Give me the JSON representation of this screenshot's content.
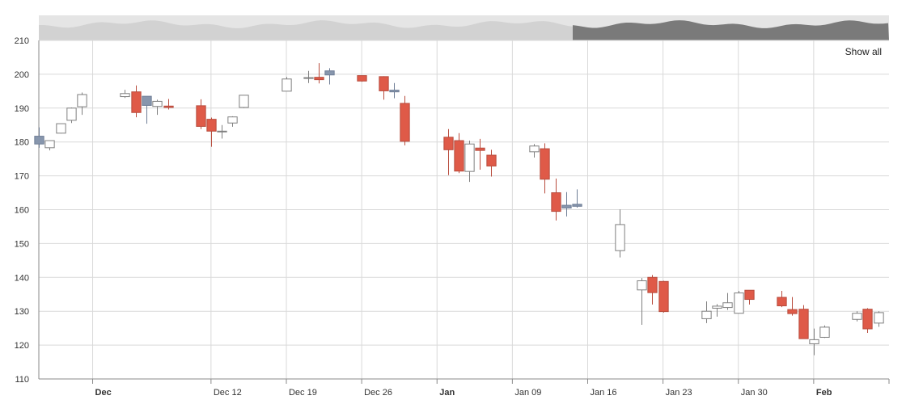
{
  "controls": {
    "show_all": "Show all"
  },
  "colors": {
    "up": "#7f7f7f",
    "down": "#df5a48",
    "down_border": "#b84c3d",
    "highlight_body": "#8796ad",
    "grid": "#d9d9d9",
    "axis": "#8a8a8a",
    "navigator_bg": "#e5e5e5",
    "navigator_left": "#d2d2d2",
    "navigator_right": "#7a7a7a"
  },
  "chart_data": {
    "type": "candlestick",
    "title": "",
    "xlabel": "",
    "ylabel": "",
    "ylim": [
      110,
      210
    ],
    "yticks": [
      110,
      120,
      130,
      140,
      150,
      160,
      170,
      180,
      190,
      200,
      210
    ],
    "xticks": [
      {
        "label": "Dec",
        "date": "2015-12-01",
        "bold": true
      },
      {
        "label": "Dec 12",
        "date": "2015-12-12",
        "bold": false
      },
      {
        "label": "Dec 19",
        "date": "2015-12-19",
        "bold": false
      },
      {
        "label": "Dec 26",
        "date": "2015-12-26",
        "bold": false
      },
      {
        "label": "Jan",
        "date": "2016-01-02",
        "bold": true
      },
      {
        "label": "Jan 09",
        "date": "2016-01-09",
        "bold": false
      },
      {
        "label": "Jan 16",
        "date": "2016-01-16",
        "bold": false
      },
      {
        "label": "Jan 23",
        "date": "2016-01-23",
        "bold": false
      },
      {
        "label": "Jan 30",
        "date": "2016-01-30",
        "bold": false
      },
      {
        "label": "Feb",
        "date": "2016-02-06",
        "bold": true
      }
    ],
    "grid": true,
    "navigator": true,
    "candles": [
      {
        "date": "2015-11-26",
        "open": 181.7,
        "high": 184.3,
        "low": 178.3,
        "close": 179.4,
        "highlight": true
      },
      {
        "date": "2015-11-27",
        "open": 178.3,
        "high": 180.4,
        "low": 177.5,
        "close": 180.4
      },
      {
        "date": "2015-11-28",
        "open": 182.6,
        "high": 185.4,
        "low": 182.5,
        "close": 185.4
      },
      {
        "date": "2015-11-29",
        "open": 186.4,
        "high": 190.2,
        "low": 185.6,
        "close": 190.0
      },
      {
        "date": "2015-11-30",
        "open": 190.4,
        "high": 194.6,
        "low": 188.0,
        "close": 194.0
      },
      {
        "date": "2015-12-04",
        "open": 193.4,
        "high": 195.4,
        "low": 193.0,
        "close": 194.3
      },
      {
        "date": "2015-12-05",
        "open": 194.8,
        "high": 196.7,
        "low": 187.3,
        "close": 188.7
      },
      {
        "date": "2015-12-06",
        "open": 193.5,
        "high": 193.5,
        "low": 185.4,
        "close": 190.8,
        "highlight": true
      },
      {
        "date": "2015-12-07",
        "open": 190.5,
        "high": 192.5,
        "low": 188.0,
        "close": 192.0
      },
      {
        "date": "2015-12-08",
        "open": 190.6,
        "high": 192.7,
        "low": 189.6,
        "close": 190.2
      },
      {
        "date": "2015-12-11",
        "open": 190.7,
        "high": 192.6,
        "low": 183.8,
        "close": 184.6
      },
      {
        "date": "2015-12-12",
        "open": 186.7,
        "high": 187.2,
        "low": 178.6,
        "close": 183.2
      },
      {
        "date": "2015-12-13",
        "open": 183.0,
        "high": 185.0,
        "low": 181.0,
        "close": 183.2
      },
      {
        "date": "2015-12-14",
        "open": 185.6,
        "high": 187.6,
        "low": 184.5,
        "close": 187.4
      },
      {
        "date": "2015-12-15",
        "open": 190.2,
        "high": 193.8,
        "low": 190.0,
        "close": 193.8
      },
      {
        "date": "2015-12-19",
        "open": 195.0,
        "high": 199.2,
        "low": 195.0,
        "close": 198.6
      },
      {
        "date": "2015-12-21",
        "open": 198.8,
        "high": 201.0,
        "low": 197.4,
        "close": 199.0
      },
      {
        "date": "2015-12-22",
        "open": 199.1,
        "high": 203.3,
        "low": 197.3,
        "close": 198.4
      },
      {
        "date": "2015-12-23",
        "open": 199.8,
        "high": 201.8,
        "low": 197.0,
        "close": 201.0,
        "highlight": true
      },
      {
        "date": "2015-12-26",
        "open": 199.6,
        "high": 199.6,
        "low": 197.8,
        "close": 198.0
      },
      {
        "date": "2015-12-28",
        "open": 199.3,
        "high": 199.4,
        "low": 192.5,
        "close": 195.1
      },
      {
        "date": "2015-12-29",
        "open": 195.3,
        "high": 197.4,
        "low": 192.9,
        "close": 194.8,
        "highlight": true
      },
      {
        "date": "2015-12-30",
        "open": 191.4,
        "high": 193.6,
        "low": 179.0,
        "close": 180.2
      },
      {
        "date": "2016-01-03",
        "open": 181.4,
        "high": 183.8,
        "low": 170.2,
        "close": 177.7
      },
      {
        "date": "2016-01-04",
        "open": 180.4,
        "high": 182.6,
        "low": 170.8,
        "close": 171.4
      },
      {
        "date": "2016-01-05",
        "open": 171.3,
        "high": 180.4,
        "low": 168.2,
        "close": 179.4
      },
      {
        "date": "2016-01-06",
        "open": 178.2,
        "high": 180.9,
        "low": 171.8,
        "close": 177.5
      },
      {
        "date": "2016-01-07",
        "open": 176.1,
        "high": 177.7,
        "low": 169.8,
        "close": 172.9
      },
      {
        "date": "2016-01-11",
        "open": 177.1,
        "high": 179.4,
        "low": 175.4,
        "close": 178.8
      },
      {
        "date": "2016-01-12",
        "open": 178.0,
        "high": 179.6,
        "low": 164.8,
        "close": 169.0
      },
      {
        "date": "2016-01-13",
        "open": 165.0,
        "high": 169.2,
        "low": 156.8,
        "close": 159.5
      },
      {
        "date": "2016-01-14",
        "open": 161.3,
        "high": 165.2,
        "low": 158.0,
        "close": 160.5,
        "highlight": true
      },
      {
        "date": "2016-01-15",
        "open": 161.6,
        "high": 166.0,
        "low": 160.6,
        "close": 161.0,
        "highlight": true
      },
      {
        "date": "2016-01-19",
        "open": 147.9,
        "high": 160.1,
        "low": 145.9,
        "close": 155.6
      },
      {
        "date": "2016-01-21",
        "open": 136.3,
        "high": 139.8,
        "low": 126.0,
        "close": 139.0
      },
      {
        "date": "2016-01-22",
        "open": 140.0,
        "high": 140.7,
        "low": 132.0,
        "close": 135.5
      },
      {
        "date": "2016-01-23",
        "open": 138.8,
        "high": 139.0,
        "low": 129.6,
        "close": 129.9
      },
      {
        "date": "2016-01-27",
        "open": 127.8,
        "high": 132.9,
        "low": 126.5,
        "close": 130.0
      },
      {
        "date": "2016-01-28",
        "open": 130.9,
        "high": 132.1,
        "low": 128.4,
        "close": 131.5
      },
      {
        "date": "2016-01-29",
        "open": 131.1,
        "high": 135.4,
        "low": 130.4,
        "close": 132.5
      },
      {
        "date": "2016-01-30",
        "open": 129.4,
        "high": 136.0,
        "low": 129.4,
        "close": 135.4
      },
      {
        "date": "2016-01-31",
        "open": 136.2,
        "high": 136.2,
        "low": 132.0,
        "close": 133.5
      },
      {
        "date": "2016-02-03",
        "open": 134.1,
        "high": 136.0,
        "low": 131.2,
        "close": 131.6
      },
      {
        "date": "2016-02-04",
        "open": 130.5,
        "high": 134.2,
        "low": 128.7,
        "close": 129.3
      },
      {
        "date": "2016-02-05",
        "open": 130.6,
        "high": 131.8,
        "low": 121.8,
        "close": 121.9
      },
      {
        "date": "2016-02-06",
        "open": 120.4,
        "high": 124.9,
        "low": 117.0,
        "close": 121.6
      },
      {
        "date": "2016-02-07",
        "open": 122.3,
        "high": 125.8,
        "low": 122.1,
        "close": 125.3
      },
      {
        "date": "2016-02-10",
        "open": 127.6,
        "high": 130.0,
        "low": 127.0,
        "close": 129.4
      },
      {
        "date": "2016-02-11",
        "open": 130.6,
        "high": 130.9,
        "low": 123.6,
        "close": 124.8
      },
      {
        "date": "2016-02-12",
        "open": 126.5,
        "high": 130.0,
        "low": 125.4,
        "close": 129.6
      }
    ]
  }
}
